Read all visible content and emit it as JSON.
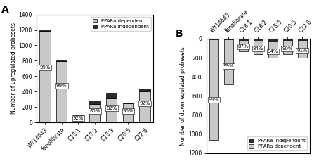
{
  "chart_data": [
    {
      "type": "bar",
      "stacked": true,
      "title": "A",
      "categories": [
        "WY14643",
        "fenofibrate",
        "C18:1",
        "C18:2",
        "C18:3",
        "C20:5",
        "C22:6"
      ],
      "series": [
        {
          "name": "PPARa dependent",
          "color": "#c8c8c8",
          "values": [
            1188.0,
            792.0,
            92.0,
            238.0,
            311.6,
            249.6,
            404.8
          ],
          "share_labels": [
            "99%",
            "99%",
            "92%",
            "85%",
            "82%",
            "96%",
            "92%"
          ]
        },
        {
          "name": "PPARa independent",
          "color": "#2a2a2a",
          "values": [
            12.0,
            8.0,
            8.0,
            42.0,
            68.4,
            10.4,
            35.2
          ]
        }
      ],
      "ylabel": "Number of upregulated probesets",
      "ylim": [
        0,
        1400
      ],
      "yticks": [
        0,
        200,
        400,
        600,
        800,
        1000,
        1200,
        1400
      ],
      "legend": "upper right"
    },
    {
      "type": "bar",
      "stacked": true,
      "title": "B",
      "categories": [
        "WY14643",
        "fenofibrate",
        "C18:1",
        "C18:2",
        "C18:3",
        "C20:5",
        "C22:6"
      ],
      "series": [
        {
          "name": "PPARa independent",
          "color": "#2a2a2a",
          "values": [
            10.6,
            4.8,
            16.9,
            25.6,
            32.0,
            16.0,
            18.0
          ]
        },
        {
          "name": "PPARa dependent",
          "color": "#c8c8c8",
          "values": [
            1049.4,
            475.2,
            113.1,
            134.4,
            168.0,
            144.0,
            182.0
          ],
          "share_labels": [
            "99%",
            "99%",
            "87%",
            "84%",
            "84%",
            "90%",
            "91%"
          ]
        }
      ],
      "ylabel": "Number of downregulated probesets",
      "ylim": [
        1200,
        0
      ],
      "yticks": [
        0,
        200,
        400,
        600,
        800,
        1000,
        1200
      ],
      "legend": "lower right"
    }
  ]
}
